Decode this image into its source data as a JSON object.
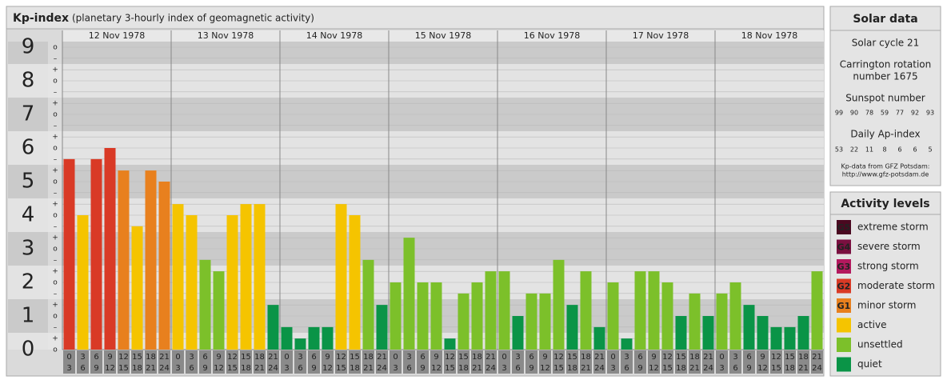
{
  "header": {
    "title": "Kp-index",
    "subtitle": "(planetary 3-hourly index of geomagnetic activity)"
  },
  "chart_data": {
    "type": "bar",
    "days": [
      "12 Nov 1978",
      "13 Nov 1978",
      "14 Nov 1978",
      "15 Nov 1978",
      "16 Nov 1978",
      "17 Nov 1978",
      "18 Nov 1978"
    ],
    "hours": [
      0,
      3,
      6,
      9,
      12,
      15,
      18,
      21,
      24
    ],
    "values": [
      5.67,
      4,
      5.67,
      6,
      5.33,
      3.67,
      5.33,
      5,
      4.33,
      4,
      2.67,
      2.33,
      4,
      4.33,
      4.33,
      1.33,
      0.67,
      0.33,
      0.67,
      0.67,
      4.33,
      4,
      2.67,
      1.33,
      2,
      3.33,
      2,
      2,
      0.33,
      1.67,
      2,
      2.33,
      2.33,
      1,
      1.67,
      1.67,
      2.67,
      1.33,
      2.33,
      0.67,
      2,
      0.33,
      2.33,
      2.33,
      2,
      1,
      1.67,
      1,
      1.67,
      2,
      1.33,
      1,
      0.67,
      0.67,
      1,
      2.33
    ],
    "colors": [
      "#d93a26",
      "#f5c400",
      "#d93a26",
      "#d93a26",
      "#e8801e",
      "#f5c400",
      "#e8801e",
      "#e8801e",
      "#f5c400",
      "#f5c400",
      "#7cc02a",
      "#7cc02a",
      "#f5c400",
      "#f5c400",
      "#f5c400",
      "#0a9447",
      "#0a9447",
      "#0a9447",
      "#0a9447",
      "#0a9447",
      "#f5c400",
      "#f5c400",
      "#7cc02a",
      "#0a9447",
      "#7cc02a",
      "#7cc02a",
      "#7cc02a",
      "#7cc02a",
      "#0a9447",
      "#7cc02a",
      "#7cc02a",
      "#7cc02a",
      "#7cc02a",
      "#0a9447",
      "#7cc02a",
      "#7cc02a",
      "#7cc02a",
      "#0a9447",
      "#7cc02a",
      "#0a9447",
      "#7cc02a",
      "#0a9447",
      "#7cc02a",
      "#7cc02a",
      "#7cc02a",
      "#0a9447",
      "#7cc02a",
      "#0a9447",
      "#7cc02a",
      "#7cc02a",
      "#0a9447",
      "#0a9447",
      "#0a9447",
      "#0a9447",
      "#0a9447",
      "#7cc02a"
    ],
    "ylim": [
      0,
      9
    ],
    "yticks": [
      0,
      1,
      2,
      3,
      4,
      5,
      6,
      7,
      8,
      9
    ],
    "minor_ticks": [
      {
        "value": 0,
        "label": "o"
      },
      {
        "value": 0.33,
        "label": "+"
      },
      {
        "value": 0.67,
        "label": "–"
      },
      {
        "value": 1,
        "label": "o"
      },
      {
        "value": 1.33,
        "label": "+"
      },
      {
        "value": 1.67,
        "label": "–"
      },
      {
        "value": 2,
        "label": "o"
      },
      {
        "value": 2.33,
        "label": "+"
      },
      {
        "value": 2.67,
        "label": "–"
      },
      {
        "value": 3,
        "label": "o"
      },
      {
        "value": 3.33,
        "label": "+"
      },
      {
        "value": 3.67,
        "label": "–"
      },
      {
        "value": 4,
        "label": "o"
      },
      {
        "value": 4.33,
        "label": "+"
      },
      {
        "value": 4.67,
        "label": "–"
      },
      {
        "value": 5,
        "label": "o"
      },
      {
        "value": 5.33,
        "label": "+"
      },
      {
        "value": 5.67,
        "label": "–"
      },
      {
        "value": 6,
        "label": "o"
      },
      {
        "value": 6.33,
        "label": "+"
      },
      {
        "value": 6.67,
        "label": "–"
      },
      {
        "value": 7,
        "label": "o"
      },
      {
        "value": 7.33,
        "label": "+"
      },
      {
        "value": 7.67,
        "label": "–"
      },
      {
        "value": 8,
        "label": "o"
      },
      {
        "value": 8.33,
        "label": "+"
      },
      {
        "value": 8.67,
        "label": "–"
      },
      {
        "value": 9,
        "label": "o"
      }
    ],
    "grid": true
  },
  "solar_data": {
    "title": "Solar data",
    "cycle": "Solar cycle 21",
    "carrington": [
      "Carrington rotation",
      "number 1675"
    ],
    "sunspot_label": "Sunspot number",
    "sunspot": [
      99,
      90,
      78,
      59,
      77,
      92,
      93
    ],
    "ap_label": "Daily Ap-index",
    "ap": [
      53,
      22,
      11,
      8,
      6,
      6,
      5
    ],
    "source": [
      "Kp-data from GFZ Potsdam:",
      "http://www.gfz-potsdam.de"
    ]
  },
  "activity_levels": {
    "title": "Activity levels",
    "items": [
      {
        "badge": "G5",
        "label": "extreme storm",
        "color": "#4a0820"
      },
      {
        "badge": "G4",
        "label": "severe storm",
        "color": "#7a1040"
      },
      {
        "badge": "G3",
        "label": "strong storm",
        "color": "#b3195e"
      },
      {
        "badge": "G2",
        "label": "moderate storm",
        "color": "#d93a26"
      },
      {
        "badge": "G1",
        "label": "minor storm",
        "color": "#e8801e"
      },
      {
        "label": "active",
        "color": "#f5c400"
      },
      {
        "label": "unsettled",
        "color": "#7cc02a"
      },
      {
        "label": "quiet",
        "color": "#0a9447"
      }
    ]
  }
}
